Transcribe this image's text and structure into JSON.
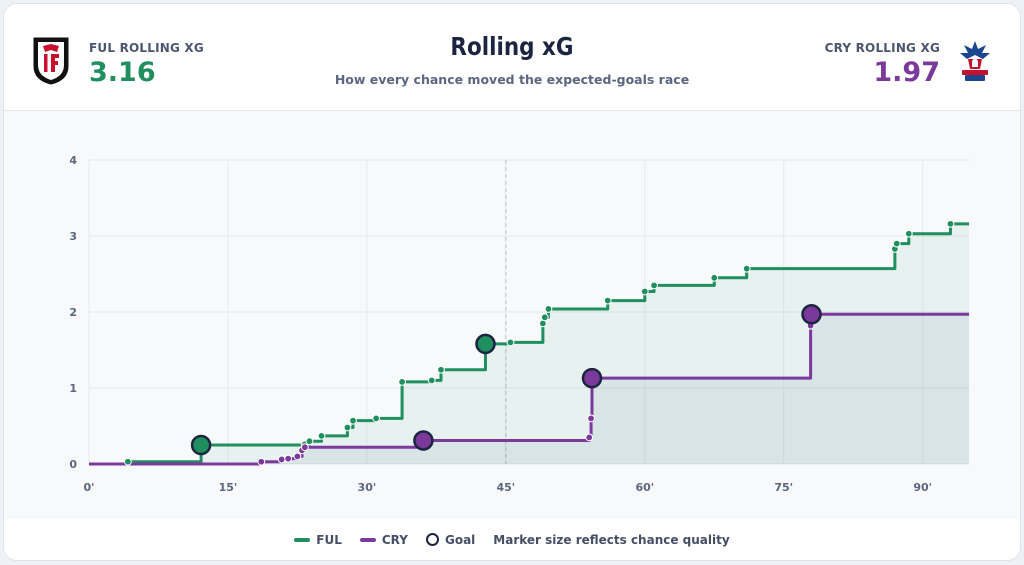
{
  "header": {
    "title": "Rolling xG",
    "subtitle": "How every chance moved the expected-goals race",
    "home": {
      "label": "FUL ROLLING XG",
      "value": "3.16",
      "crest": "fulham-crest-icon",
      "color": "#1f8f5f"
    },
    "away": {
      "label": "CRY ROLLING XG",
      "value": "1.97",
      "crest": "crystal-palace-crest-icon",
      "color": "#7b3a9b"
    }
  },
  "legend": {
    "ful": "FUL",
    "cry": "CRY",
    "goal": "Goal",
    "note": "Marker size reflects chance quality"
  },
  "chart_data": {
    "type": "line",
    "step": true,
    "xlim": [
      0,
      95
    ],
    "ylim": [
      0,
      4
    ],
    "x_ticks": [
      0,
      15,
      30,
      45,
      60,
      75,
      90
    ],
    "x_tick_labels": [
      "0'",
      "15'",
      "30'",
      "45'",
      "60'",
      "75'",
      "90'"
    ],
    "y_ticks": [
      0,
      1,
      2,
      3,
      4
    ],
    "y_tick_labels": [
      "0",
      "1",
      "2",
      "3",
      "4"
    ],
    "halftime_line": 45,
    "grid": true,
    "series": [
      {
        "name": "FUL",
        "color": "#1f8f5f",
        "final": 3.16,
        "shots": [
          {
            "x": 4.2,
            "y": 0.03,
            "goal": false
          },
          {
            "x": 12.1,
            "y": 0.25,
            "goal": true
          },
          {
            "x": 23.3,
            "y": 0.26,
            "goal": false
          },
          {
            "x": 23.8,
            "y": 0.3,
            "goal": false
          },
          {
            "x": 25.1,
            "y": 0.37,
            "goal": false
          },
          {
            "x": 27.9,
            "y": 0.48,
            "goal": false
          },
          {
            "x": 28.5,
            "y": 0.57,
            "goal": false
          },
          {
            "x": 31.0,
            "y": 0.6,
            "goal": false
          },
          {
            "x": 33.8,
            "y": 1.08,
            "goal": false
          },
          {
            "x": 37.0,
            "y": 1.1,
            "goal": false
          },
          {
            "x": 38.0,
            "y": 1.24,
            "goal": false
          },
          {
            "x": 42.8,
            "y": 1.58,
            "goal": true
          },
          {
            "x": 45.5,
            "y": 1.6,
            "goal": false
          },
          {
            "x": 49.0,
            "y": 1.85,
            "goal": false
          },
          {
            "x": 49.2,
            "y": 1.93,
            "goal": false
          },
          {
            "x": 49.6,
            "y": 2.04,
            "goal": false
          },
          {
            "x": 56.0,
            "y": 2.15,
            "goal": false
          },
          {
            "x": 60.0,
            "y": 2.27,
            "goal": false
          },
          {
            "x": 61.0,
            "y": 2.35,
            "goal": false
          },
          {
            "x": 67.5,
            "y": 2.45,
            "goal": false
          },
          {
            "x": 71.0,
            "y": 2.57,
            "goal": false
          },
          {
            "x": 87.0,
            "y": 2.83,
            "goal": false
          },
          {
            "x": 87.2,
            "y": 2.9,
            "goal": false
          },
          {
            "x": 88.5,
            "y": 3.03,
            "goal": false
          },
          {
            "x": 93.0,
            "y": 3.16,
            "goal": false
          }
        ]
      },
      {
        "name": "CRY",
        "color": "#7b3a9b",
        "final": 1.97,
        "shots": [
          {
            "x": 18.6,
            "y": 0.03,
            "goal": false
          },
          {
            "x": 20.8,
            "y": 0.06,
            "goal": false
          },
          {
            "x": 21.5,
            "y": 0.07,
            "goal": false
          },
          {
            "x": 22.5,
            "y": 0.1,
            "goal": false
          },
          {
            "x": 23.0,
            "y": 0.18,
            "goal": false
          },
          {
            "x": 23.3,
            "y": 0.22,
            "goal": false
          },
          {
            "x": 36.1,
            "y": 0.31,
            "goal": true
          },
          {
            "x": 54.0,
            "y": 0.35,
            "goal": false
          },
          {
            "x": 54.2,
            "y": 0.6,
            "goal": false
          },
          {
            "x": 54.3,
            "y": 1.13,
            "goal": true
          },
          {
            "x": 77.9,
            "y": 1.82,
            "goal": false
          },
          {
            "x": 78.0,
            "y": 1.97,
            "goal": true
          }
        ]
      }
    ]
  }
}
